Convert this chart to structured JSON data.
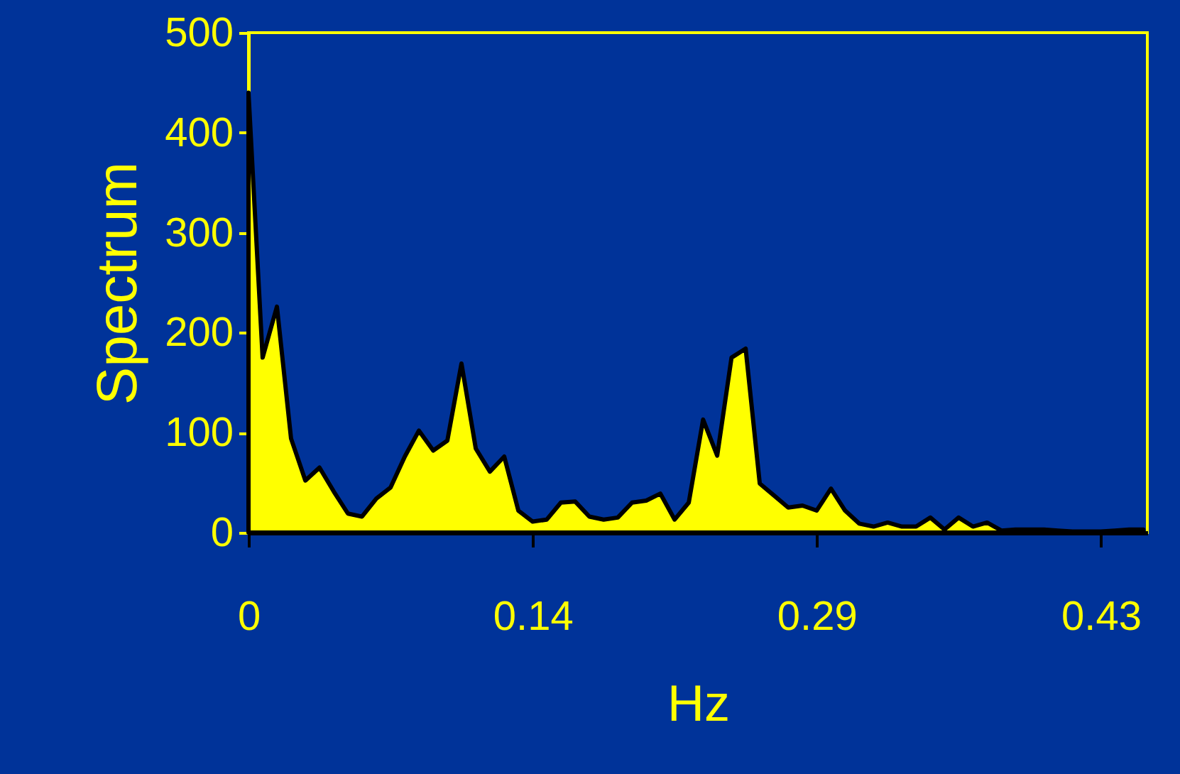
{
  "chart_data": {
    "type": "area",
    "xlabel": "Hz",
    "ylabel": "Spectrum",
    "xlim": [
      0,
      0.452
    ],
    "ylim": [
      0,
      500
    ],
    "xticks": [
      0,
      {
        "value": 0.1429,
        "label": "0.14"
      },
      {
        "value": 0.2857,
        "label": "0.29"
      },
      {
        "value": 0.4286,
        "label": "0.43"
      }
    ],
    "yticks": [
      0,
      100,
      200,
      300,
      400,
      500
    ],
    "x": [
      0,
      0.0071,
      0.0143,
      0.0214,
      0.0286,
      0.0357,
      0.0429,
      0.05,
      0.0571,
      0.0643,
      0.0714,
      0.0786,
      0.0857,
      0.0929,
      0.1,
      0.1071,
      0.1143,
      0.1214,
      0.1286,
      0.1357,
      0.1429,
      0.15,
      0.1571,
      0.1643,
      0.1714,
      0.1786,
      0.1857,
      0.1929,
      0.2,
      0.2071,
      0.2143,
      0.2214,
      0.2286,
      0.2357,
      0.2429,
      0.25,
      0.2571,
      0.2643,
      0.2714,
      0.2786,
      0.2857,
      0.2929,
      0.3,
      0.3071,
      0.3143,
      0.3214,
      0.3286,
      0.3357,
      0.3429,
      0.35,
      0.3571,
      0.3643,
      0.3714,
      0.3786,
      0.3857,
      0.3929,
      0.4,
      0.4071,
      0.4143,
      0.4214,
      0.4286,
      0.4357,
      0.4429,
      0.45
    ],
    "series": [
      {
        "color": "#ffff00",
        "values": [
          440,
          175,
          226,
          94,
          52,
          65,
          41,
          19,
          16,
          34,
          45,
          76,
          102,
          82,
          92,
          169,
          84,
          61,
          76,
          22,
          11,
          13,
          30,
          31,
          16,
          13,
          15,
          30,
          32,
          39,
          13,
          30,
          113,
          77,
          175,
          184,
          49,
          37,
          25,
          27,
          22,
          44,
          22,
          9,
          6,
          10,
          6,
          6,
          15,
          3,
          15,
          6,
          10,
          2,
          3,
          3,
          3,
          2,
          1,
          1,
          1,
          2,
          3,
          3
        ]
      }
    ]
  }
}
